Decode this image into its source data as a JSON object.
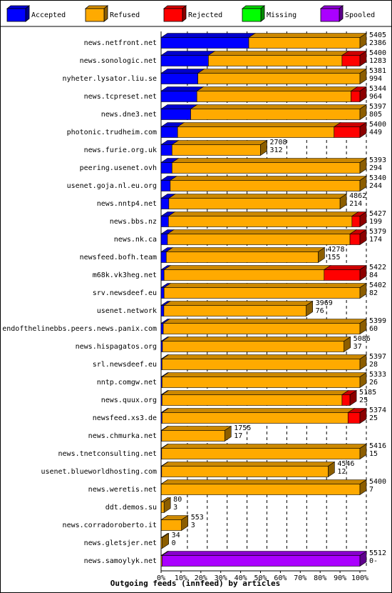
{
  "chart_data": {
    "type": "bar",
    "orientation": "horizontal",
    "stacked": true,
    "title": "Outgoing feeds (innfeed) by articles",
    "xlim": [
      0,
      100
    ],
    "x_ticks": [
      "0%",
      "10%",
      "20%",
      "30%",
      "40%",
      "50%",
      "60%",
      "70%",
      "80%",
      "90%",
      "100%"
    ],
    "legend": {
      "position": "top",
      "items": [
        {
          "name": "Accepted",
          "color": "#0000ff"
        },
        {
          "name": "Refused",
          "color": "#ffaa00"
        },
        {
          "name": "Rejected",
          "color": "#ff0000"
        },
        {
          "name": "Missing",
          "color": "#00ff00"
        },
        {
          "name": "Spooled",
          "color": "#aa00ff"
        }
      ]
    },
    "rows": [
      {
        "name": "news.netfront.net",
        "total": "5405",
        "accepted": "2386",
        "pct": [
          44.1,
          55.9,
          0,
          0,
          0
        ]
      },
      {
        "name": "news.sonologic.net",
        "total": "5400",
        "accepted": "1283",
        "pct": [
          23.8,
          67.2,
          9.0,
          0,
          0
        ]
      },
      {
        "name": "nyheter.lysator.liu.se",
        "total": "5381",
        "accepted": "994",
        "pct": [
          18.5,
          81.5,
          0,
          0,
          0
        ]
      },
      {
        "name": "news.tcpreset.net",
        "total": "5344",
        "accepted": "964",
        "pct": [
          18.0,
          77.5,
          4.5,
          0,
          0
        ]
      },
      {
        "name": "news.dne3.net",
        "total": "5397",
        "accepted": "805",
        "pct": [
          14.9,
          85.1,
          0,
          0,
          0
        ]
      },
      {
        "name": "photonic.trudheim.com",
        "total": "5400",
        "accepted": "449",
        "pct": [
          8.3,
          78.7,
          13.0,
          0,
          0
        ]
      },
      {
        "name": "news.furie.org.uk",
        "total": "2708",
        "accepted": "312",
        "pct": [
          5.5,
          44.5,
          0,
          0,
          0
        ]
      },
      {
        "name": "peering.usenet.ovh",
        "total": "5393",
        "accepted": "294",
        "pct": [
          5.5,
          94.5,
          0,
          0,
          0
        ]
      },
      {
        "name": "usenet.goja.nl.eu.org",
        "total": "5340",
        "accepted": "244",
        "pct": [
          4.6,
          95.4,
          0,
          0,
          0
        ]
      },
      {
        "name": "news.nntp4.net",
        "total": "4862",
        "accepted": "214",
        "pct": [
          3.9,
          86.1,
          0,
          0,
          0
        ]
      },
      {
        "name": "news.bbs.nz",
        "total": "5427",
        "accepted": "199",
        "pct": [
          3.7,
          92.3,
          4.0,
          0,
          0
        ]
      },
      {
        "name": "news.nk.ca",
        "total": "5379",
        "accepted": "174",
        "pct": [
          3.2,
          91.8,
          5.0,
          0,
          0
        ]
      },
      {
        "name": "newsfeed.bofh.team",
        "total": "4278",
        "accepted": "155",
        "pct": [
          2.6,
          76.4,
          0,
          0,
          0
        ]
      },
      {
        "name": "m68k.vk3heg.net",
        "total": "5422",
        "accepted": "84",
        "pct": [
          1.5,
          80.5,
          18.0,
          0,
          0
        ]
      },
      {
        "name": "srv.newsdeef.eu",
        "total": "5402",
        "accepted": "82",
        "pct": [
          1.5,
          98.5,
          0,
          0,
          0
        ]
      },
      {
        "name": "usenet.network",
        "total": "3969",
        "accepted": "76",
        "pct": [
          1.4,
          71.6,
          0,
          0,
          0
        ]
      },
      {
        "name": "endofthelinebbs.peers.news.panix.com",
        "total": "5399",
        "accepted": "60",
        "pct": [
          1.1,
          98.9,
          0,
          0,
          0
        ]
      },
      {
        "name": "news.hispagatos.org",
        "total": "5086",
        "accepted": "37",
        "pct": [
          0.7,
          91.3,
          0,
          0,
          0
        ]
      },
      {
        "name": "srl.newsdeef.eu",
        "total": "5397",
        "accepted": "28",
        "pct": [
          0.5,
          99.5,
          0,
          0,
          0
        ]
      },
      {
        "name": "nntp.comgw.net",
        "total": "5333",
        "accepted": "26",
        "pct": [
          0.5,
          99.5,
          0,
          0,
          0
        ]
      },
      {
        "name": "news.quux.org",
        "total": "5185",
        "accepted": "25",
        "pct": [
          0.5,
          90.5,
          4.0,
          0,
          0
        ]
      },
      {
        "name": "newsfeed.xs3.de",
        "total": "5374",
        "accepted": "25",
        "pct": [
          0.5,
          93.5,
          6.0,
          0,
          0
        ]
      },
      {
        "name": "news.chmurka.net",
        "total": "1755",
        "accepted": "17",
        "pct": [
          0.3,
          31.7,
          0,
          0,
          0
        ]
      },
      {
        "name": "news.tnetconsulting.net",
        "total": "5416",
        "accepted": "15",
        "pct": [
          0.3,
          99.7,
          0,
          0,
          0
        ]
      },
      {
        "name": "usenet.blueworldhosting.com",
        "total": "4546",
        "accepted": "12",
        "pct": [
          0.3,
          83.7,
          0,
          0,
          0
        ]
      },
      {
        "name": "news.weretis.net",
        "total": "5400",
        "accepted": "7",
        "pct": [
          0.1,
          99.9,
          0,
          0,
          0
        ]
      },
      {
        "name": "ddt.demos.su",
        "total": "80",
        "accepted": "3",
        "pct": [
          0.1,
          1.4,
          0,
          0,
          0
        ]
      },
      {
        "name": "news.corradoroberto.it",
        "total": "553",
        "accepted": "3",
        "pct": [
          0.1,
          10.2,
          0,
          0,
          0
        ]
      },
      {
        "name": "news.gletsjer.net",
        "total": "34",
        "accepted": "0",
        "pct": [
          0,
          0.6,
          0,
          0,
          0
        ]
      },
      {
        "name": "news.samoylyk.net",
        "total": "5512",
        "accepted": "0-",
        "pct": [
          0,
          0.5,
          0,
          0,
          99.5
        ]
      }
    ]
  }
}
